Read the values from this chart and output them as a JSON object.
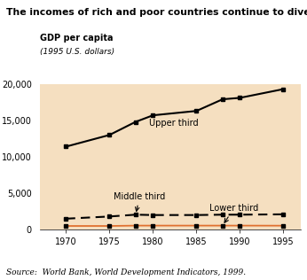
{
  "title": "The incomes of rich and poor countries continue to diverge",
  "ylabel_main": "GDP per capita",
  "ylabel_sub": "(1995 U.S. dollars)",
  "source": "Source:  World Bank, World Development Indicators, 1999.",
  "upper_years": [
    1970,
    1975,
    1978,
    1980,
    1985,
    1988,
    1990,
    1995
  ],
  "upper_values": [
    11400,
    13000,
    14800,
    15700,
    16300,
    17900,
    18100,
    19300
  ],
  "middle_years": [
    1970,
    1975,
    1978,
    1980,
    1985,
    1988,
    1990,
    1995
  ],
  "middle_values": [
    1500,
    1800,
    2050,
    2000,
    2000,
    2050,
    2050,
    2100
  ],
  "lower_years": [
    1970,
    1975,
    1978,
    1980,
    1985,
    1988,
    1990,
    1995
  ],
  "lower_values": [
    500,
    500,
    550,
    550,
    550,
    550,
    550,
    540
  ],
  "bg_color": "#f5dfc0",
  "line_color_upper": "#000000",
  "line_color_middle": "#000000",
  "line_color_lower": "#e07030",
  "ylim": [
    0,
    20000
  ],
  "yticks": [
    0,
    5000,
    10000,
    15000,
    20000
  ],
  "xticks": [
    1970,
    1975,
    1980,
    1985,
    1990,
    1995
  ],
  "xlim": [
    1967,
    1997
  ]
}
